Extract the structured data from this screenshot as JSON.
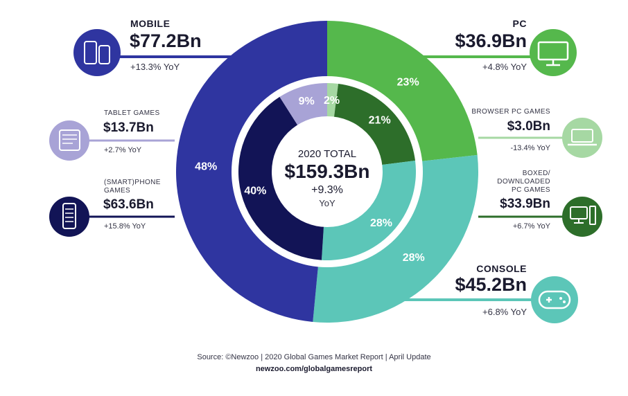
{
  "chart_data": {
    "type": "pie",
    "subtype": "nested-donut",
    "center": {
      "title": "2020 TOTAL",
      "value": "$159.3Bn",
      "growth": "+9.3%",
      "growth_unit": "YoY"
    },
    "outer_ring": [
      {
        "name": "Mobile",
        "percent": 48,
        "label": "48%",
        "color": "#2f35a0"
      },
      {
        "name": "PC",
        "percent": 23,
        "label": "23%",
        "color": "#55b84c"
      },
      {
        "name": "Console",
        "percent": 28,
        "label": "28%",
        "color": "#5cc6b8"
      }
    ],
    "inner_ring": [
      {
        "name": "(Smart)phone Games",
        "percent": 40,
        "label": "40%",
        "color": "#121456"
      },
      {
        "name": "Tablet Games",
        "percent": 9,
        "label": "9%",
        "color": "#a8a3d6"
      },
      {
        "name": "Browser PC Games",
        "percent": 2,
        "label": "2%",
        "color": "#a6d8a3"
      },
      {
        "name": "Boxed/Downloaded PC Games",
        "percent": 21,
        "label": "21%",
        "color": "#2d6e2a"
      },
      {
        "name": "Console",
        "percent": 28,
        "label": "28%",
        "color": "#5cc6b8"
      }
    ],
    "callouts": {
      "mobile": {
        "category": "MOBILE",
        "value": "$77.2Bn",
        "yoy": "+13.3% YoY",
        "color": "#2f35a0",
        "icon": "mobile-devices-icon"
      },
      "pc": {
        "category": "PC",
        "value": "$36.9Bn",
        "yoy": "+4.8% YoY",
        "color": "#55b84c",
        "icon": "monitor-icon"
      },
      "console": {
        "category": "CONSOLE",
        "value": "$45.2Bn",
        "yoy": "+6.8% YoY",
        "color": "#5cc6b8",
        "icon": "gamepad-icon"
      },
      "tablet": {
        "category": "TABLET GAMES",
        "value": "$13.7Bn",
        "yoy": "+2.7% YoY",
        "color": "#a8a3d6",
        "icon": "tablet-icon"
      },
      "phone": {
        "category_line1": "(SMART)PHONE",
        "category_line2": "GAMES",
        "value": "$63.6Bn",
        "yoy": "+15.8% YoY",
        "color": "#121456",
        "icon": "smartphone-icon"
      },
      "browser": {
        "category": "BROWSER PC GAMES",
        "value": "$3.0Bn",
        "yoy": "-13.4% YoY",
        "color": "#a6d8a3",
        "icon": "laptop-icon"
      },
      "boxed": {
        "category_line1": "BOXED/",
        "category_line2": "DOWNLOADED",
        "category_line3": "PC GAMES",
        "value": "$33.9Bn",
        "yoy": "+6.7% YoY",
        "color": "#2d6e2a",
        "icon": "desktop-computer-icon"
      }
    }
  },
  "footer": {
    "source": "Source: ©Newzoo | 2020 Global Games Market Report | April Update",
    "url": "newzoo.com/globalgamesreport"
  }
}
